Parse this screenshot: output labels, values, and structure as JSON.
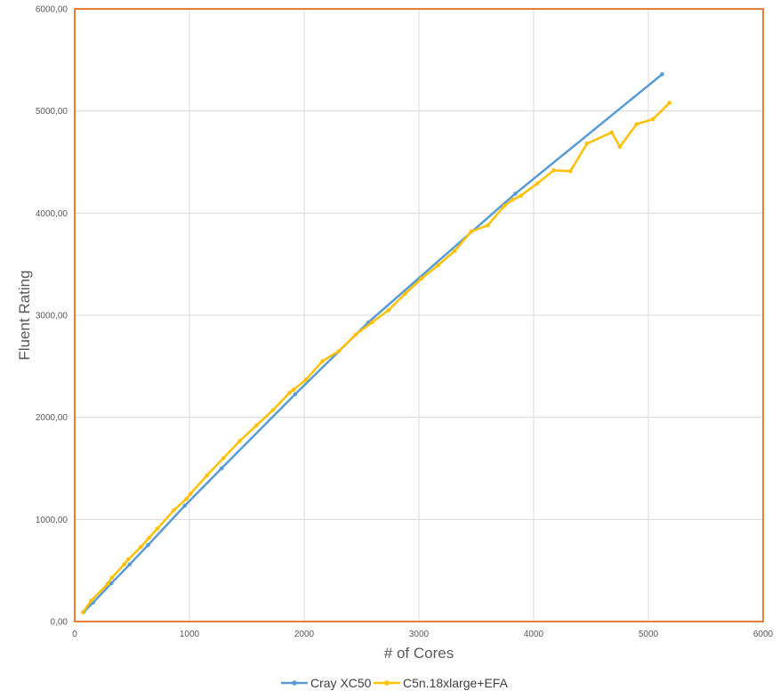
{
  "chart_data": {
    "type": "line",
    "title": "",
    "xlabel": "# of Cores",
    "ylabel": "Fluent Rating",
    "xlim": [
      0,
      6000
    ],
    "ylim": [
      0,
      6000
    ],
    "x_ticks": [
      "0",
      "1000",
      "2000",
      "3000",
      "4000",
      "5000",
      "6000"
    ],
    "y_ticks": [
      "0,00",
      "1000,00",
      "2000,00",
      "3000,00",
      "4000,00",
      "5000,00",
      "6000,00"
    ],
    "grid": true,
    "legend_position": "bottom",
    "frame_color": "#ED7D31",
    "series": [
      {
        "name": "Cray XC50",
        "color": "#5B9BD5",
        "x": [
          80,
          160,
          320,
          480,
          640,
          960,
          1280,
          1920,
          2560,
          3840,
          5120
        ],
        "y": [
          95,
          185,
          375,
          560,
          750,
          1135,
          1500,
          2225,
          2930,
          4190,
          5360
        ]
      },
      {
        "name": "C5n.18xlarge+EFA",
        "color": "#FFC000",
        "x": [
          72,
          144,
          288,
          324,
          432,
          468,
          576,
          648,
          720,
          864,
          972,
          1008,
          1152,
          1296,
          1440,
          1584,
          1728,
          1872,
          1908,
          2016,
          2160,
          2304,
          2448,
          2592,
          2736,
          2880,
          3024,
          3168,
          3312,
          3456,
          3600,
          3744,
          3816,
          3888,
          4032,
          4176,
          4320,
          4464,
          4680,
          4752,
          4896,
          5040,
          5184
        ],
        "y": [
          90,
          205,
          370,
          430,
          560,
          610,
          730,
          820,
          910,
          1090,
          1200,
          1250,
          1430,
          1600,
          1770,
          1920,
          2070,
          2240,
          2270,
          2370,
          2550,
          2650,
          2810,
          2930,
          3050,
          3210,
          3360,
          3490,
          3630,
          3820,
          3880,
          4070,
          4130,
          4170,
          4290,
          4420,
          4410,
          4680,
          4790,
          4650,
          4870,
          4920,
          5080
        ]
      }
    ]
  }
}
